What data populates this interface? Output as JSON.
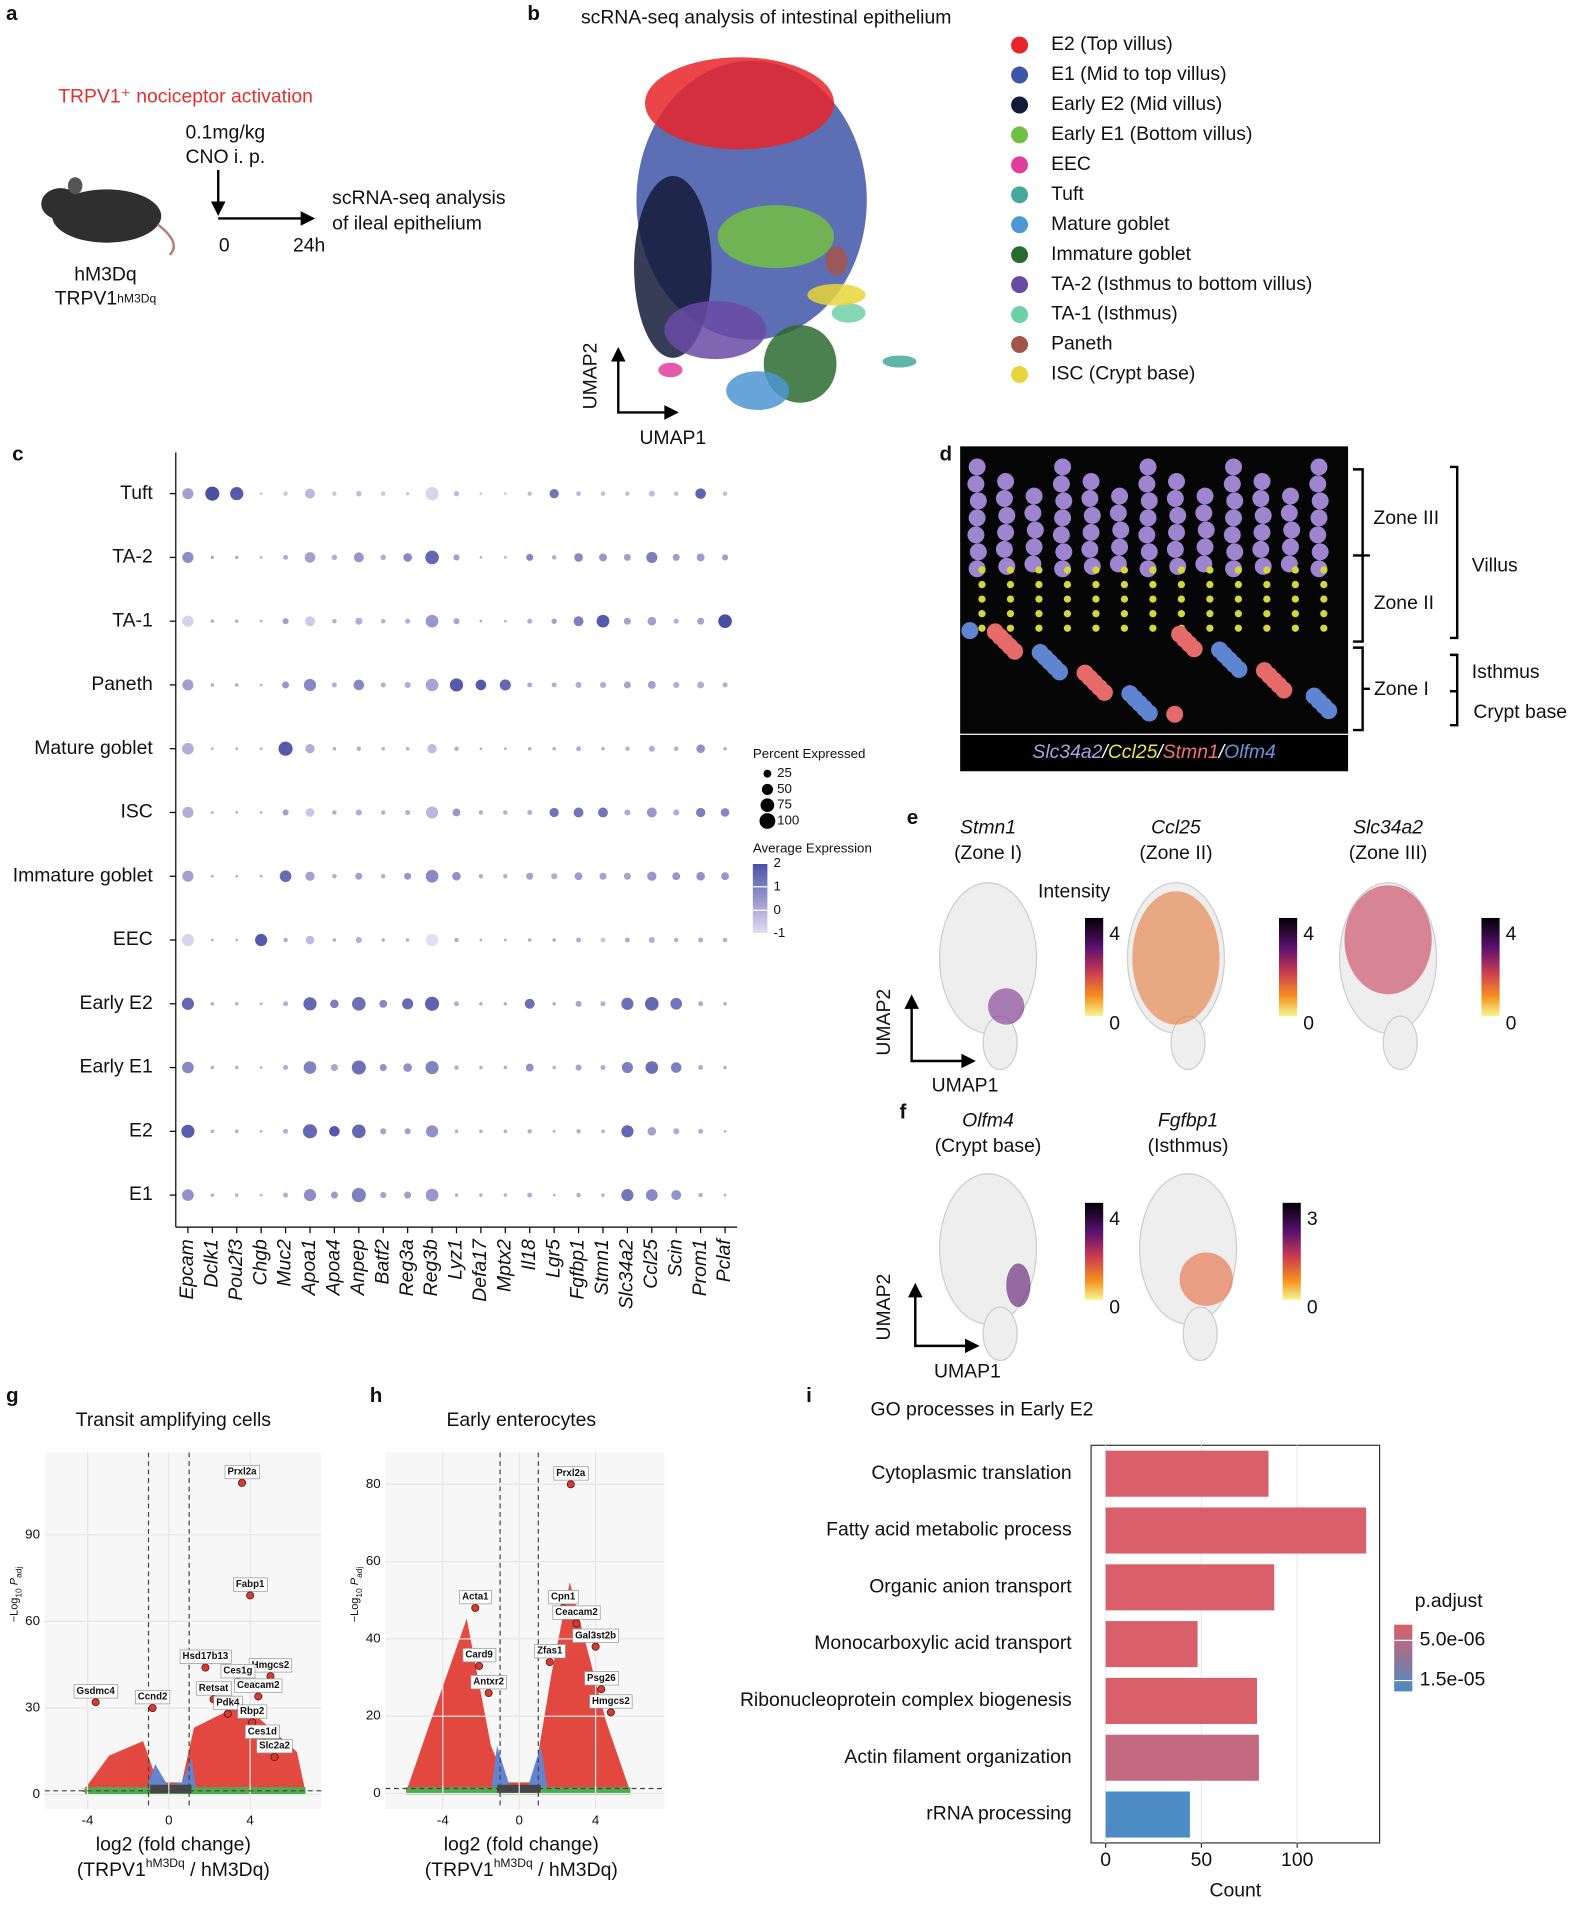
{
  "panel_letters": [
    "a",
    "b",
    "c",
    "d",
    "e",
    "f",
    "g",
    "h",
    "i"
  ],
  "panel_a": {
    "activation": "TRPV1⁺ nociceptor activation",
    "dose": "0.1mg/kg",
    "route": "CNO i. p.",
    "analysis": [
      "scRNA-seq analysis",
      "of ileal epithelium"
    ],
    "t0": "0",
    "t1": "24h",
    "mouse": "hM3Dq",
    "mouse2": {
      "base": "TRPV1",
      "sup": "hM3Dq"
    }
  },
  "panel_d": {
    "stains": [
      {
        "name": "Slc34a2",
        "color": "#b59ce0"
      },
      {
        "name": "Ccl25",
        "color": "#e6e84a"
      },
      {
        "name": "Stmn1",
        "color": "#f07272"
      },
      {
        "name": "Olfm4",
        "color": "#6f90da"
      }
    ],
    "separator": "/",
    "zones": [
      "Zone III",
      "Zone II",
      "Zone I"
    ],
    "regions": [
      "Villus",
      "Isthmus",
      "Crypt base"
    ]
  },
  "panel_e": {
    "intensity": "Intensity",
    "x_label": "UMAP1",
    "y_label": "UMAP2",
    "maps": [
      {
        "gene": "Stmn1",
        "zone": "(Zone I)",
        "ticks": [
          4,
          0
        ]
      },
      {
        "gene": "Ccl25",
        "zone": "(Zone II)",
        "ticks": [
          4,
          0
        ]
      },
      {
        "gene": "Slc34a2",
        "zone": "(Zone III)",
        "ticks": [
          4,
          0
        ]
      }
    ]
  },
  "panel_f": {
    "x_label": "UMAP1",
    "y_label": "UMAP2",
    "maps": [
      {
        "gene": "Olfm4",
        "zone": "(Crypt base)",
        "ticks": [
          4,
          0
        ]
      },
      {
        "gene": "Fgfbp1",
        "zone": "(Isthmus)",
        "ticks": [
          3,
          0
        ]
      }
    ]
  },
  "chart_data": [
    {
      "type": "umap",
      "title": "scRNA-seq analysis of intestinal epithelium",
      "x_label": "UMAP1",
      "y_label": "UMAP2",
      "series": [
        {
          "name": "E2 (Top villus)",
          "color": "#e8252a"
        },
        {
          "name": "E1 (Mid to top villus)",
          "color": "#3f56a8"
        },
        {
          "name": "Early E2 (Mid villus)",
          "color": "#141a3a"
        },
        {
          "name": "Early E1 (Bottom villus)",
          "color": "#72c043"
        },
        {
          "name": "EEC",
          "color": "#e03d9a"
        },
        {
          "name": "Tuft",
          "color": "#45a89a"
        },
        {
          "name": "Mature goblet",
          "color": "#4d97d4"
        },
        {
          "name": "Immature goblet",
          "color": "#2a6b2f"
        },
        {
          "name": "TA-2 (Isthmus to bottom villus)",
          "color": "#6a4aa5"
        },
        {
          "name": "TA-1 (Isthmus)",
          "color": "#6dd0a8"
        },
        {
          "name": "Paneth",
          "color": "#a4554a"
        },
        {
          "name": "ISC (Crypt base)",
          "color": "#e9d53a"
        }
      ]
    },
    {
      "type": "dotplot",
      "size_title": "Percent Expressed",
      "size_ticks": [
        25,
        50,
        75,
        100
      ],
      "color_title": "Average Expression",
      "color_ticks": [
        2,
        1,
        0,
        -1
      ],
      "color_lim": [
        -1,
        2
      ],
      "colors": [
        "#e3def0",
        "#4a4fa6"
      ],
      "categories": [
        "Epcam",
        "Dclk1",
        "Pou2f3",
        "Chgb",
        "Muc2",
        "Apoa1",
        "Apoa4",
        "Anpep",
        "Batf2",
        "Reg3a",
        "Reg3b",
        "Lyz1",
        "Defa17",
        "Mptx2",
        "Il18",
        "Lgr5",
        "Fgfbp1",
        "Stmn1",
        "Slc34a2",
        "Ccl25",
        "Scin",
        "Prom1",
        "Pclaf"
      ],
      "series": [
        {
          "name": "Tuft",
          "percent": [
            50,
            80,
            70,
            3,
            8,
            40,
            8,
            12,
            8,
            5,
            70,
            12,
            3,
            3,
            8,
            35,
            10,
            8,
            8,
            15,
            8,
            45,
            8
          ],
          "expression": [
            0.3,
            2,
            1.8,
            -0.5,
            -0.5,
            -0.2,
            -0.5,
            -0.3,
            -0.5,
            -0.5,
            -0.8,
            -0.3,
            -0.5,
            -0.5,
            -0.3,
            1.2,
            -0.3,
            -0.3,
            -0.3,
            -0.3,
            -0.3,
            1.6,
            -0.3
          ]
        },
        {
          "name": "TA-2",
          "percent": [
            50,
            5,
            5,
            3,
            10,
            45,
            12,
            40,
            12,
            30,
            75,
            15,
            3,
            3,
            20,
            8,
            30,
            25,
            20,
            50,
            20,
            25,
            15
          ],
          "expression": [
            0.7,
            0,
            0,
            0,
            0,
            0.3,
            0,
            0.5,
            0,
            0.8,
            1.5,
            0.3,
            0,
            0,
            0.8,
            0,
            0.8,
            0.5,
            0.3,
            1,
            0.4,
            0.4,
            0.3
          ]
        },
        {
          "name": "TA-1",
          "percent": [
            50,
            5,
            5,
            3,
            15,
            40,
            8,
            20,
            8,
            10,
            65,
            15,
            3,
            3,
            10,
            12,
            40,
            65,
            20,
            30,
            10,
            20,
            75
          ],
          "expression": [
            -0.7,
            0,
            0,
            0,
            0.3,
            -0.6,
            0,
            0,
            0,
            0,
            0.5,
            0.2,
            0,
            0,
            0,
            0.3,
            1,
            1.8,
            0.2,
            0.3,
            0,
            0.2,
            2
          ]
        },
        {
          "name": "Paneth",
          "percent": [
            50,
            5,
            5,
            3,
            20,
            60,
            10,
            45,
            10,
            15,
            65,
            70,
            45,
            50,
            10,
            10,
            15,
            15,
            20,
            25,
            15,
            20,
            10
          ],
          "expression": [
            0.3,
            0,
            0,
            0,
            0.5,
            0.8,
            0,
            0.8,
            0,
            0,
            0.2,
            1.8,
            1.8,
            1.5,
            0,
            0,
            0,
            0,
            0.2,
            0.3,
            0,
            0,
            0
          ]
        },
        {
          "name": "Mature goblet",
          "percent": [
            55,
            3,
            3,
            3,
            80,
            35,
            5,
            8,
            5,
            5,
            35,
            8,
            3,
            3,
            5,
            5,
            10,
            5,
            8,
            15,
            8,
            30,
            5
          ],
          "expression": [
            0,
            0,
            0,
            0,
            1.8,
            0,
            0,
            0,
            0,
            0,
            -0.3,
            0,
            0,
            0,
            0,
            0,
            0,
            0,
            0,
            0,
            0,
            0.6,
            0
          ]
        },
        {
          "name": "ISC",
          "percent": [
            50,
            3,
            3,
            3,
            15,
            30,
            8,
            15,
            8,
            10,
            60,
            25,
            8,
            8,
            10,
            35,
            40,
            40,
            15,
            40,
            15,
            35,
            30
          ],
          "expression": [
            0,
            0,
            0,
            0,
            0.3,
            -0.5,
            0,
            0,
            0,
            0,
            -0.2,
            0.5,
            0,
            0,
            0,
            1.2,
            1.2,
            1.2,
            0,
            0.5,
            0,
            1,
            0.8
          ]
        },
        {
          "name": "Immature goblet",
          "percent": [
            50,
            3,
            3,
            3,
            55,
            35,
            8,
            20,
            8,
            20,
            65,
            30,
            8,
            8,
            20,
            15,
            25,
            20,
            20,
            35,
            25,
            30,
            25
          ],
          "expression": [
            0.3,
            0,
            0,
            0,
            1.4,
            0.3,
            0,
            0.3,
            0,
            0.5,
            0.8,
            0.6,
            0,
            0,
            0.3,
            0,
            0.4,
            0.2,
            0.2,
            0.5,
            0.5,
            0.6,
            0.5
          ]
        },
        {
          "name": "EEC",
          "percent": [
            60,
            3,
            3,
            60,
            8,
            30,
            5,
            15,
            5,
            5,
            60,
            8,
            3,
            3,
            5,
            5,
            10,
            10,
            10,
            15,
            8,
            10,
            8
          ],
          "expression": [
            -0.8,
            0,
            0,
            1.8,
            0,
            -0.3,
            0,
            0,
            0,
            0,
            -1,
            0,
            0,
            0,
            0,
            0,
            0,
            -0.5,
            0,
            0,
            0,
            0,
            0
          ]
        },
        {
          "name": "Early E2",
          "percent": [
            60,
            5,
            5,
            3,
            10,
            70,
            30,
            75,
            25,
            50,
            80,
            10,
            5,
            5,
            40,
            5,
            15,
            10,
            60,
            75,
            55,
            10,
            5
          ],
          "expression": [
            1.5,
            0,
            0,
            0,
            0,
            1.5,
            1,
            1.3,
            0.8,
            1.4,
            1.6,
            0,
            0,
            0,
            1.3,
            0,
            0.2,
            0,
            1.3,
            1.5,
            1.2,
            0,
            0
          ]
        },
        {
          "name": "Early E1",
          "percent": [
            55,
            5,
            5,
            3,
            10,
            65,
            20,
            80,
            20,
            30,
            70,
            8,
            5,
            5,
            25,
            5,
            15,
            10,
            50,
            65,
            45,
            10,
            5
          ],
          "expression": [
            0.8,
            0,
            0,
            0,
            0,
            0.9,
            0.2,
            1.3,
            0.6,
            0.6,
            0.9,
            0,
            0,
            0,
            0.6,
            0,
            0.2,
            0,
            1,
            1.3,
            1,
            0,
            0
          ]
        },
        {
          "name": "E2",
          "percent": [
            70,
            5,
            5,
            3,
            10,
            80,
            45,
            75,
            15,
            15,
            60,
            5,
            5,
            5,
            8,
            3,
            8,
            5,
            60,
            30,
            15,
            10,
            3
          ],
          "expression": [
            1.7,
            0,
            0,
            0,
            0,
            1.5,
            1.8,
            1.5,
            0.3,
            0.3,
            0.6,
            0,
            0,
            0,
            0,
            0,
            0,
            0,
            1.5,
            0.3,
            0,
            0,
            0
          ]
        },
        {
          "name": "E1",
          "percent": [
            55,
            5,
            5,
            3,
            10,
            60,
            20,
            80,
            15,
            20,
            65,
            5,
            5,
            5,
            10,
            3,
            8,
            5,
            60,
            55,
            40,
            8,
            3
          ],
          "expression": [
            0.6,
            0,
            0,
            0,
            0,
            0.7,
            0.4,
            1,
            0.3,
            0.3,
            0.5,
            0,
            0,
            0,
            0,
            0,
            0,
            0,
            1.2,
            0.8,
            0.6,
            0,
            0
          ]
        }
      ]
    },
    {
      "type": "volcano",
      "title": "Transit amplifying cells",
      "x_label": "log2 (fold change)",
      "x_label2": [
        "(TRPV1",
        "hM3Dq",
        " / hM3Dq)"
      ],
      "y_label": [
        "−Log",
        "10",
        " P",
        "adj"
      ],
      "color": "#e0362c",
      "xlim": [
        -6.1,
        7.5
      ],
      "ylim": [
        -5,
        118.5
      ],
      "xticks": [
        -4,
        0,
        4
      ],
      "yticks": [
        0,
        30,
        60,
        90
      ],
      "x_thresholds": [
        -1,
        1
      ],
      "y_threshold": 1.3,
      "labels": [
        "Prxl2a",
        "Fabp1",
        "Hmgcs2",
        "Hsd17b13",
        "Ces1g",
        "Retsat",
        "Ceacam2",
        "Pdk4",
        "Rbp2",
        "Ces1d",
        "Slc2a2",
        "Gsdmc4",
        "Ccnd2"
      ],
      "x": [
        3.6,
        4,
        5,
        1.8,
        3.4,
        2.2,
        4.4,
        2.9,
        4.1,
        4.6,
        5.2,
        -3.6,
        -0.8
      ],
      "values": [
        108,
        69,
        41,
        44,
        39,
        33,
        34,
        28,
        25,
        18,
        13,
        32,
        30
      ]
    },
    {
      "type": "volcano",
      "title": "Early enterocytes",
      "x_label": "log2 (fold change)",
      "x_label2": [
        "(TRPV1",
        "hM3Dq",
        " / hM3Dq)"
      ],
      "y_label": [
        "−Log",
        "10",
        " P",
        "adj"
      ],
      "color": "#e0362c",
      "xlim": [
        -7,
        7.6
      ],
      "ylim": [
        -4,
        88.2
      ],
      "xticks": [
        -4,
        0,
        4
      ],
      "yticks": [
        0,
        20,
        40,
        60,
        80
      ],
      "x_thresholds": [
        -1,
        1
      ],
      "y_threshold": 1.3,
      "labels": [
        "Prxl2a",
        "Acta1",
        "Cpn1",
        "Ceacam2",
        "Card9",
        "Zfas1",
        "Gal3st2b",
        "Antxr2",
        "Psg26",
        "Hmgcs2"
      ],
      "x": [
        2.7,
        -2.3,
        2.3,
        3,
        -2.1,
        1.6,
        4,
        -1.6,
        4.3,
        4.8
      ],
      "values": [
        80,
        48,
        48,
        44,
        33,
        34,
        38,
        26,
        27,
        21
      ]
    },
    {
      "type": "hbar",
      "title": "GO processes in Early E2",
      "x_label": "Count",
      "xlim": [
        -7.6,
        143
      ],
      "xticks": [
        0,
        50,
        100
      ],
      "grid": true,
      "categories": [
        "Cytoplasmic translation",
        "Fatty acid metabolic process",
        "Organic anion transport",
        "Monocarboxylic acid transport",
        "Ribonucleoprotein complex biogenesis",
        "Actin filament organization",
        "rRNA processing"
      ],
      "values": [
        85,
        136,
        88,
        48,
        79,
        80,
        44
      ],
      "colors": [
        "#d9606a",
        "#d9606a",
        "#d9606a",
        "#d9606a",
        "#d9606a",
        "#c46a80",
        "#4d8bc4"
      ],
      "legend_title": "p.adjust",
      "clim": [
        1.1e-06,
        1.77e-05
      ],
      "cticks": [
        {
          "value": 5e-06,
          "label": "5.0e-06"
        },
        {
          "value": 1.5e-05,
          "label": "1.5e-05"
        }
      ],
      "cgradient": [
        "#d9606a",
        "#4d8bc4"
      ]
    }
  ]
}
